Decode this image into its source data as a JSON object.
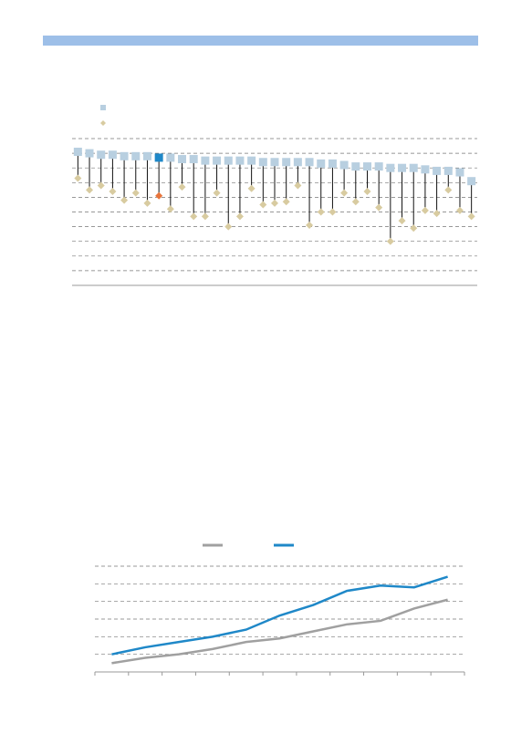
{
  "chart_data": [
    {
      "type": "dot-range",
      "categories": [
        null,
        null,
        null,
        null,
        null,
        null,
        null,
        null,
        null,
        null,
        null,
        null,
        null,
        null,
        null,
        null,
        null,
        null,
        null,
        null,
        null,
        null,
        null,
        null,
        null,
        null,
        null,
        null,
        null,
        null,
        null,
        null,
        null,
        null,
        null
      ],
      "series": [
        {
          "color": "#b8cfe0",
          "highlight_color": "#1f88c8",
          "marker": "square",
          "values": [
            9.1,
            9.0,
            8.9,
            8.9,
            8.8,
            8.8,
            8.8,
            8.7,
            8.7,
            8.6,
            8.6,
            8.5,
            8.5,
            8.5,
            8.5,
            8.5,
            8.4,
            8.4,
            8.4,
            8.4,
            8.4,
            8.3,
            8.3,
            8.2,
            8.1,
            8.1,
            8.1,
            8.0,
            8.0,
            8.0,
            7.9,
            7.8,
            7.8,
            7.7,
            7.1
          ]
        },
        {
          "color": "#d8cba0",
          "highlight_color": "#e8743b",
          "marker": "diamond",
          "values": [
            7.3,
            6.5,
            6.8,
            6.4,
            5.8,
            6.3,
            5.6,
            6.1,
            5.2,
            6.7,
            4.7,
            4.7,
            6.3,
            4.0,
            4.7,
            6.6,
            5.5,
            5.6,
            5.7,
            6.8,
            4.1,
            5.0,
            5.0,
            6.3,
            5.7,
            6.4,
            5.3,
            3.0,
            4.4,
            3.9,
            5.1,
            4.9,
            6.5,
            5.1,
            4.7
          ]
        }
      ],
      "highlight_index": 7,
      "ylim": [
        0,
        10
      ],
      "yticks": [
        1,
        2,
        3,
        4,
        5,
        6,
        7,
        8,
        9,
        10
      ],
      "grid": true
    },
    {
      "type": "line",
      "categories": [
        null,
        null,
        null,
        null,
        null,
        null,
        null,
        null,
        null,
        null,
        null
      ],
      "series": [
        {
          "color": "#a0a0a0",
          "values": [
            0.5,
            0.8,
            1.0,
            1.3,
            1.7,
            1.9,
            2.3,
            2.7,
            2.9,
            3.6,
            4.1
          ]
        },
        {
          "color": "#1f88c8",
          "values": [
            1.0,
            1.4,
            1.7,
            2.0,
            2.4,
            3.2,
            3.8,
            4.6,
            4.9,
            4.8,
            5.4
          ]
        }
      ],
      "ylim": [
        0,
        6
      ],
      "yticks": [
        1,
        2,
        3,
        4,
        5,
        6
      ],
      "grid": true
    }
  ]
}
